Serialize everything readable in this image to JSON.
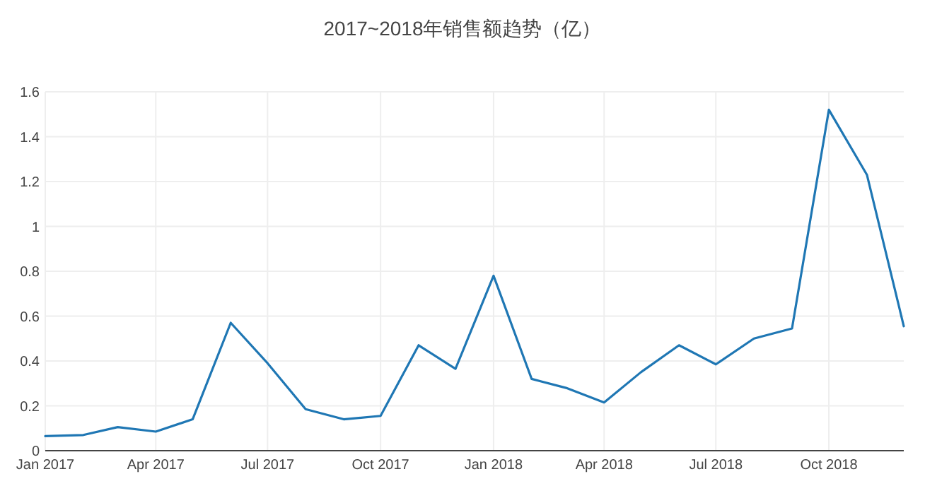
{
  "chart_data": {
    "type": "line",
    "title": "2017~2018年销售额趋势（亿）",
    "x": [
      "2017-01",
      "2017-02",
      "2017-03",
      "2017-04",
      "2017-05",
      "2017-06",
      "2017-07",
      "2017-08",
      "2017-09",
      "2017-10",
      "2017-11",
      "2017-12",
      "2018-01",
      "2018-02",
      "2018-03",
      "2018-04",
      "2018-05",
      "2018-06",
      "2018-07",
      "2018-08",
      "2018-09",
      "2018-10",
      "2018-11",
      "2018-12"
    ],
    "series": [
      {
        "color": "#1f77b4",
        "values": [
          0.065,
          0.07,
          0.105,
          0.085,
          0.14,
          0.57,
          0.39,
          0.185,
          0.14,
          0.155,
          0.47,
          0.365,
          0.78,
          0.32,
          0.28,
          0.215,
          0.35,
          0.47,
          0.385,
          0.5,
          0.545,
          1.52,
          1.23,
          0.555
        ]
      }
    ],
    "xlim": [
      "2017-01",
      "2018-12"
    ],
    "xticks": [
      {
        "value": "2017-01",
        "label": "Jan 2017"
      },
      {
        "value": "2017-04",
        "label": "Apr 2017"
      },
      {
        "value": "2017-07",
        "label": "Jul 2017"
      },
      {
        "value": "2017-10",
        "label": "Oct 2017"
      },
      {
        "value": "2018-01",
        "label": "Jan 2018"
      },
      {
        "value": "2018-04",
        "label": "Apr 2018"
      },
      {
        "value": "2018-07",
        "label": "Jul 2018"
      },
      {
        "value": "2018-10",
        "label": "Oct 2018"
      }
    ],
    "ylim": [
      0,
      1.6
    ],
    "yticks": [
      0,
      0.2,
      0.4,
      0.6,
      0.8,
      1,
      1.2,
      1.4,
      1.6
    ],
    "grid": true,
    "marker": "none",
    "line_style": "solid"
  }
}
